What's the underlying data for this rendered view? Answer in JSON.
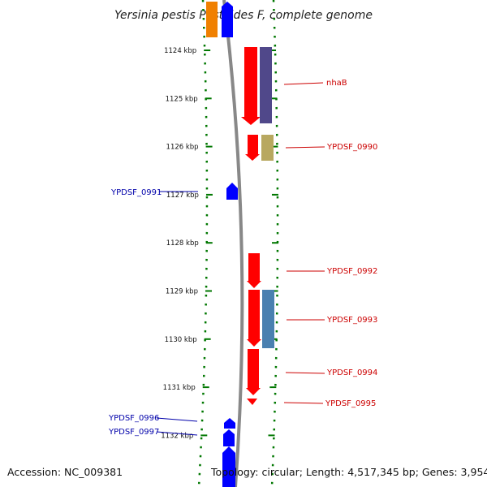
{
  "title": "Yersinia pestis Pestoides F, complete genome",
  "accession": "Accession: NC_009381",
  "topology": "Topology: circular; Length: 4,517,345 bp; Genes: 3,954",
  "ticks": [
    {
      "kbp": 1124,
      "label": "1124 kbp"
    },
    {
      "kbp": 1125,
      "label": "1125 kbp"
    },
    {
      "kbp": 1126,
      "label": "1126 kbp"
    },
    {
      "kbp": 1127,
      "label": "1127 kbp"
    },
    {
      "kbp": 1128,
      "label": "1128 kbp"
    },
    {
      "kbp": 1129,
      "label": "1129 kbp"
    },
    {
      "kbp": 1130,
      "label": "1130 kbp"
    },
    {
      "kbp": 1131,
      "label": "1131 kbp"
    },
    {
      "kbp": 1132,
      "label": "1132 kbp"
    }
  ],
  "gene_labels": {
    "nhaB": "nhaB",
    "YPDSF_0990": "YPDSF_0990",
    "YPDSF_0991": "YPDSF_0991",
    "YPDSF_0992": "YPDSF_0992",
    "YPDSF_0993": "YPDSF_0993",
    "YPDSF_0994": "YPDSF_0994",
    "YPDSF_0995": "YPDSF_0995",
    "YPDSF_0996": "YPDSF_0996",
    "YPDSF_0997": "YPDSF_0997"
  },
  "colors": {
    "reverse_strand": "#ff0000",
    "forward_strand": "#0000ff",
    "backbone": "#888888",
    "ticks": "#007700",
    "label_red": "#cc0000",
    "label_blue": "#0000aa",
    "cog_purple": "#50488a",
    "cog_khaki": "#b8a860",
    "cog_steelblue": "#4a80b0",
    "cog_orange": "#f08000"
  }
}
